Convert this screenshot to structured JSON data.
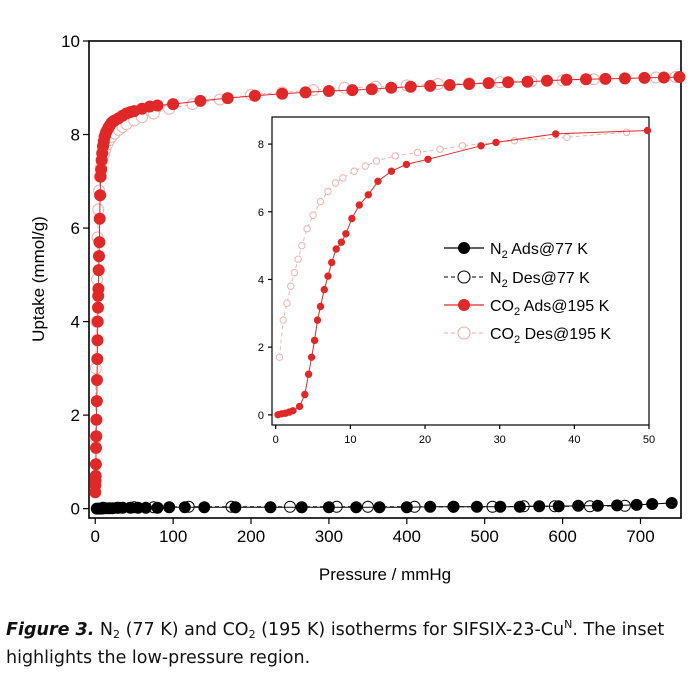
{
  "chart_data": [
    {
      "type": "scatter",
      "role": "main",
      "xlabel": "Pressure / mmHg",
      "ylabel": "Uptake (mmol/g)",
      "xlim": [
        -8,
        752
      ],
      "ylim": [
        -0.2,
        10
      ],
      "xticks": [
        0,
        100,
        200,
        300,
        400,
        500,
        600,
        700
      ],
      "yticks": [
        0,
        2,
        4,
        6,
        8,
        10
      ],
      "grid": false,
      "series": [
        {
          "name": "CO2 Ads@195 K",
          "style": "filled-red",
          "x": [
            0.1,
            0.2,
            0.4,
            0.6,
            0.8,
            1.0,
            1.2,
            1.5,
            2.0,
            2.3,
            2.6,
            2.9,
            3.2,
            3.5,
            3.8,
            4.1,
            4.5,
            4.9,
            5.3,
            5.8,
            6.3,
            6.9,
            7.5,
            8.2,
            9.0,
            10,
            11,
            12,
            13,
            14,
            15.5,
            17,
            19,
            21,
            23,
            25,
            30,
            35,
            40,
            45,
            50,
            60,
            70,
            80,
            100,
            135,
            170,
            205,
            240,
            270,
            300,
            330,
            355,
            380,
            405,
            430,
            455,
            480,
            505,
            530,
            555,
            580,
            605,
            630,
            655,
            680,
            705,
            730,
            750
          ],
          "y": [
            0.35,
            0.5,
            0.6,
            0.7,
            0.95,
            1.3,
            1.55,
            1.9,
            2.3,
            2.75,
            3.2,
            3.6,
            4.0,
            4.3,
            4.55,
            4.7,
            5.1,
            5.4,
            5.7,
            6.2,
            6.7,
            7.1,
            7.25,
            7.45,
            7.6,
            7.75,
            7.85,
            7.95,
            8.0,
            8.05,
            8.1,
            8.15,
            8.2,
            8.25,
            8.28,
            8.3,
            8.35,
            8.4,
            8.45,
            8.48,
            8.5,
            8.55,
            8.6,
            8.62,
            8.65,
            8.72,
            8.78,
            8.83,
            8.87,
            8.9,
            8.93,
            8.95,
            8.97,
            9.0,
            9.02,
            9.04,
            9.06,
            9.08,
            9.1,
            9.12,
            9.13,
            9.15,
            9.17,
            9.18,
            9.19,
            9.2,
            9.21,
            9.22,
            9.23
          ]
        },
        {
          "name": "CO2 Des@195 K",
          "style": "open-pink",
          "x": [
            0.3,
            0.8,
            1.5,
            2.2,
            3.0,
            4.0,
            5.0,
            6.0,
            7.5,
            9,
            11,
            13,
            15,
            18,
            21,
            25,
            30,
            35,
            40,
            50,
            60,
            75,
            95,
            125,
            160,
            200,
            240,
            280,
            320,
            360,
            400,
            440,
            480,
            520,
            560,
            600,
            640,
            680,
            720,
            745
          ],
          "y": [
            1.5,
            3.0,
            4.0,
            4.9,
            5.8,
            6.4,
            6.8,
            7.1,
            7.3,
            7.45,
            7.58,
            7.68,
            7.78,
            7.88,
            7.95,
            8.02,
            8.1,
            8.16,
            8.22,
            8.3,
            8.37,
            8.45,
            8.55,
            8.65,
            8.75,
            8.85,
            8.9,
            8.95,
            9.0,
            9.02,
            9.05,
            9.08,
            9.1,
            9.12,
            9.14,
            9.16,
            9.18,
            9.2,
            9.22,
            9.23
          ]
        },
        {
          "name": "N2 Ads@77 K",
          "style": "filled-black",
          "x": [
            2,
            5,
            8,
            11,
            14,
            18,
            22,
            28,
            35,
            45,
            55,
            65,
            80,
            95,
            115,
            140,
            180,
            225,
            265,
            300,
            335,
            365,
            400,
            430,
            460,
            490,
            520,
            545,
            570,
            595,
            620,
            645,
            670,
            695,
            715,
            740
          ],
          "y": [
            0.0,
            0.0,
            0.0,
            0.01,
            0.01,
            0.01,
            0.01,
            0.02,
            0.02,
            0.02,
            0.02,
            0.02,
            0.02,
            0.03,
            0.03,
            0.03,
            0.03,
            0.03,
            0.03,
            0.03,
            0.03,
            0.03,
            0.03,
            0.04,
            0.04,
            0.04,
            0.04,
            0.04,
            0.05,
            0.05,
            0.06,
            0.06,
            0.07,
            0.08,
            0.1,
            0.12
          ]
        },
        {
          "name": "N2 Des@77 K",
          "style": "open-black",
          "x": [
            10,
            30,
            50,
            75,
            120,
            175,
            250,
            310,
            350,
            410,
            460,
            510,
            550,
            590,
            635,
            680
          ],
          "y": [
            0.02,
            0.02,
            0.03,
            0.03,
            0.04,
            0.04,
            0.04,
            0.04,
            0.04,
            0.04,
            0.04,
            0.04,
            0.05,
            0.05,
            0.05,
            0.06
          ]
        }
      ]
    },
    {
      "type": "scatter",
      "role": "inset",
      "xlim": [
        -0.5,
        50
      ],
      "ylim": [
        -0.3,
        8.8
      ],
      "xticks": [
        0,
        10,
        20,
        30,
        40,
        50
      ],
      "yticks": [
        0,
        2,
        4,
        6,
        8
      ],
      "grid": false,
      "legend_position": "center-right",
      "legend": [
        {
          "name": "N2 Ads@77 K",
          "style": "filled-black"
        },
        {
          "name": "N2 Des@77 K",
          "style": "open-black"
        },
        {
          "name": "CO2 Ads@195 K",
          "style": "filled-red"
        },
        {
          "name": "CO2 Des@195 K",
          "style": "open-pink"
        }
      ],
      "series": [
        {
          "name": "CO2 Ads@195 K",
          "style": "filled-red",
          "x": [
            0.3,
            0.8,
            1.3,
            1.8,
            2.3,
            3.2,
            3.9,
            4.4,
            4.8,
            5.2,
            5.6,
            6.0,
            6.5,
            7.0,
            7.5,
            8.1,
            8.8,
            9.4,
            10.2,
            11.2,
            12.4,
            13.7,
            15.5,
            17.5,
            20.4,
            27.5,
            29.5,
            37.5,
            49.8
          ],
          "y": [
            0.0,
            0.03,
            0.05,
            0.08,
            0.12,
            0.25,
            0.6,
            1.2,
            1.7,
            2.2,
            2.8,
            3.2,
            3.7,
            4.1,
            4.5,
            4.9,
            5.1,
            5.35,
            5.8,
            6.2,
            6.5,
            6.9,
            7.2,
            7.4,
            7.55,
            7.95,
            8.05,
            8.3,
            8.4
          ]
        },
        {
          "name": "CO2 Des@195 K",
          "style": "open-pink",
          "x": [
            0.5,
            1.0,
            1.5,
            2.0,
            2.5,
            3.0,
            3.5,
            4.2,
            5.0,
            6.0,
            7.0,
            8.0,
            9.0,
            10.5,
            12.0,
            13.5,
            16.0,
            19.0,
            22.0,
            25.0,
            32.0,
            39.0,
            47.0
          ],
          "y": [
            1.7,
            2.8,
            3.3,
            3.8,
            4.2,
            4.6,
            5.0,
            5.5,
            5.9,
            6.3,
            6.6,
            6.85,
            7.0,
            7.2,
            7.35,
            7.5,
            7.65,
            7.75,
            7.85,
            7.95,
            8.1,
            8.2,
            8.35
          ]
        }
      ]
    }
  ],
  "caption": {
    "label": "Figure 3.",
    "text": {
      "part1": " N",
      "sub1": "2",
      "part2": " (77 K) and CO",
      "sub2": "2",
      "part3": " (195 K) isotherms for SIFSIX-23-Cu",
      "sup1": "N",
      "part4": ". The inset highlights the low-pressure region."
    }
  },
  "colors": {
    "co2_ads": "#e02828",
    "co2_des": "#f0a8a8",
    "n2": "#000000",
    "axis": "#000000"
  }
}
